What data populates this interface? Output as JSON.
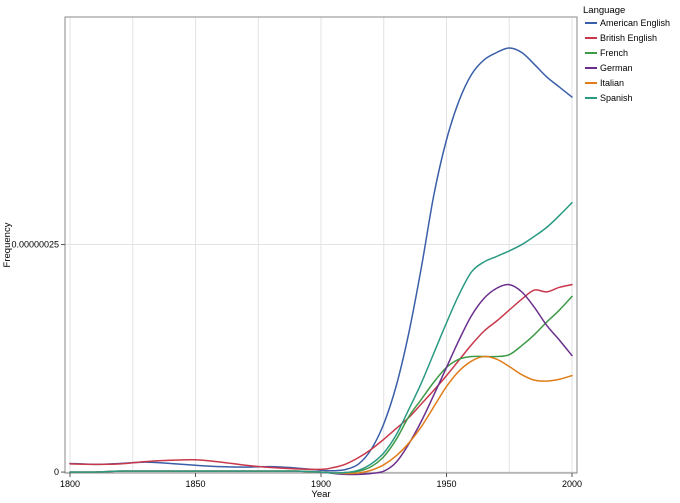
{
  "chart_data": {
    "type": "line",
    "xlabel": "Year",
    "ylabel": "Frequency",
    "xlim": [
      1798,
      2002
    ],
    "ylim": [
      -1e-09,
      5e-07
    ],
    "x_ticks": [
      {
        "value": 1800,
        "label": "1800"
      },
      {
        "value": 1850,
        "label": "1850"
      },
      {
        "value": 1900,
        "label": "1900"
      },
      {
        "value": 1950,
        "label": "1950"
      },
      {
        "value": 2000,
        "label": "2000"
      }
    ],
    "y_ticks": [
      {
        "value": 0,
        "label": "0"
      },
      {
        "value": 2.5e-07,
        "label": "0.00000025"
      }
    ],
    "x_minor_gridlines": [
      1825,
      1875,
      1925,
      1975
    ],
    "grid": true,
    "legend": {
      "title": "Language",
      "placement": "right-top"
    },
    "x": [
      1800,
      1810,
      1820,
      1830,
      1840,
      1850,
      1860,
      1870,
      1880,
      1890,
      1900,
      1905,
      1910,
      1915,
      1920,
      1925,
      1930,
      1935,
      1940,
      1945,
      1950,
      1955,
      1960,
      1965,
      1970,
      1975,
      1980,
      1985,
      1990,
      1995,
      2000
    ],
    "series": [
      {
        "name": "American English",
        "color": "#3a5fa8",
        "values": [
          9.5e-09,
          8.5e-09,
          9.5e-09,
          1.1e-08,
          9.5e-09,
          7.5e-09,
          6e-09,
          5.5e-09,
          6e-09,
          4.5e-09,
          2e-09,
          1.5e-09,
          3e-09,
          9e-09,
          2.5e-08,
          5.3e-08,
          9.5e-08,
          1.53e-07,
          2.25e-07,
          3.05e-07,
          3.65e-07,
          4.08e-07,
          4.37e-07,
          4.53e-07,
          4.61e-07,
          4.66e-07,
          4.61e-07,
          4.48e-07,
          4.34e-07,
          4.23e-07,
          4.12e-07
        ]
      },
      {
        "name": "British English",
        "color": "#c8374a",
        "values": [
          9e-09,
          8.5e-09,
          9e-09,
          1.15e-08,
          1.3e-08,
          1.35e-08,
          1.1e-08,
          7.5e-09,
          5e-09,
          3.5e-09,
          3e-09,
          5e-09,
          9e-09,
          1.6e-08,
          2.5e-08,
          3.6e-08,
          4.8e-08,
          6e-08,
          7.5e-08,
          9e-08,
          1.06e-07,
          1.23e-07,
          1.4e-07,
          1.55e-07,
          1.66e-07,
          1.78e-07,
          1.9e-07,
          2e-07,
          1.98e-07,
          2.03e-07,
          2.06e-07
        ]
      },
      {
        "name": "French",
        "color": "#3f9a48",
        "values": [
          0,
          0,
          1e-09,
          1e-09,
          1e-09,
          1e-09,
          1e-09,
          1e-09,
          1e-09,
          1e-09,
          0,
          -1e-09,
          -5e-10,
          1e-09,
          6e-09,
          1.7e-08,
          3.6e-08,
          6.1e-08,
          8e-08,
          9.9e-08,
          1.15e-07,
          1.24e-07,
          1.27e-07,
          1.27e-07,
          1.27e-07,
          1.29e-07,
          1.39e-07,
          1.51e-07,
          1.65e-07,
          1.78e-07,
          1.93e-07
        ]
      },
      {
        "name": "German",
        "color": "#6a2f8c",
        "values": [
          0,
          0,
          1e-09,
          1e-09,
          1e-09,
          1e-09,
          1e-09,
          1e-09,
          1e-09,
          1e-09,
          0,
          -1.5e-09,
          -2.5e-09,
          -2.5e-09,
          -1.5e-09,
          1e-09,
          1.1e-08,
          3.1e-08,
          5.6e-08,
          8.5e-08,
          1.15e-07,
          1.45e-07,
          1.72e-07,
          1.91e-07,
          2.02e-07,
          2.06e-07,
          1.98e-07,
          1.81e-07,
          1.61e-07,
          1.45e-07,
          1.28e-07
        ]
      },
      {
        "name": "Italian",
        "color": "#e07d1a",
        "values": [
          0,
          0,
          1e-09,
          1e-09,
          1e-09,
          1e-09,
          1e-09,
          1e-09,
          1e-09,
          1e-09,
          0,
          -1e-09,
          -1.5e-09,
          -1e-09,
          2e-09,
          8e-09,
          1.8e-08,
          3.2e-08,
          5e-08,
          7.2e-08,
          9.4e-08,
          1.11e-07,
          1.22e-07,
          1.27e-07,
          1.24e-07,
          1.16e-07,
          1.07e-07,
          1.01e-07,
          1e-07,
          1.02e-07,
          1.06e-07
        ]
      },
      {
        "name": "Spanish",
        "color": "#2a9a83",
        "values": [
          0,
          0,
          1e-09,
          1e-09,
          1e-09,
          1e-09,
          1e-09,
          1e-09,
          1e-09,
          1e-09,
          0,
          -1e-09,
          -5e-10,
          2e-09,
          9e-09,
          2.1e-08,
          4.1e-08,
          6.9e-08,
          9.8e-08,
          1.31e-07,
          1.64e-07,
          1.95e-07,
          2.2e-07,
          2.31e-07,
          2.37e-07,
          2.43e-07,
          2.5e-07,
          2.59e-07,
          2.69e-07,
          2.82e-07,
          2.96e-07
        ]
      }
    ]
  }
}
